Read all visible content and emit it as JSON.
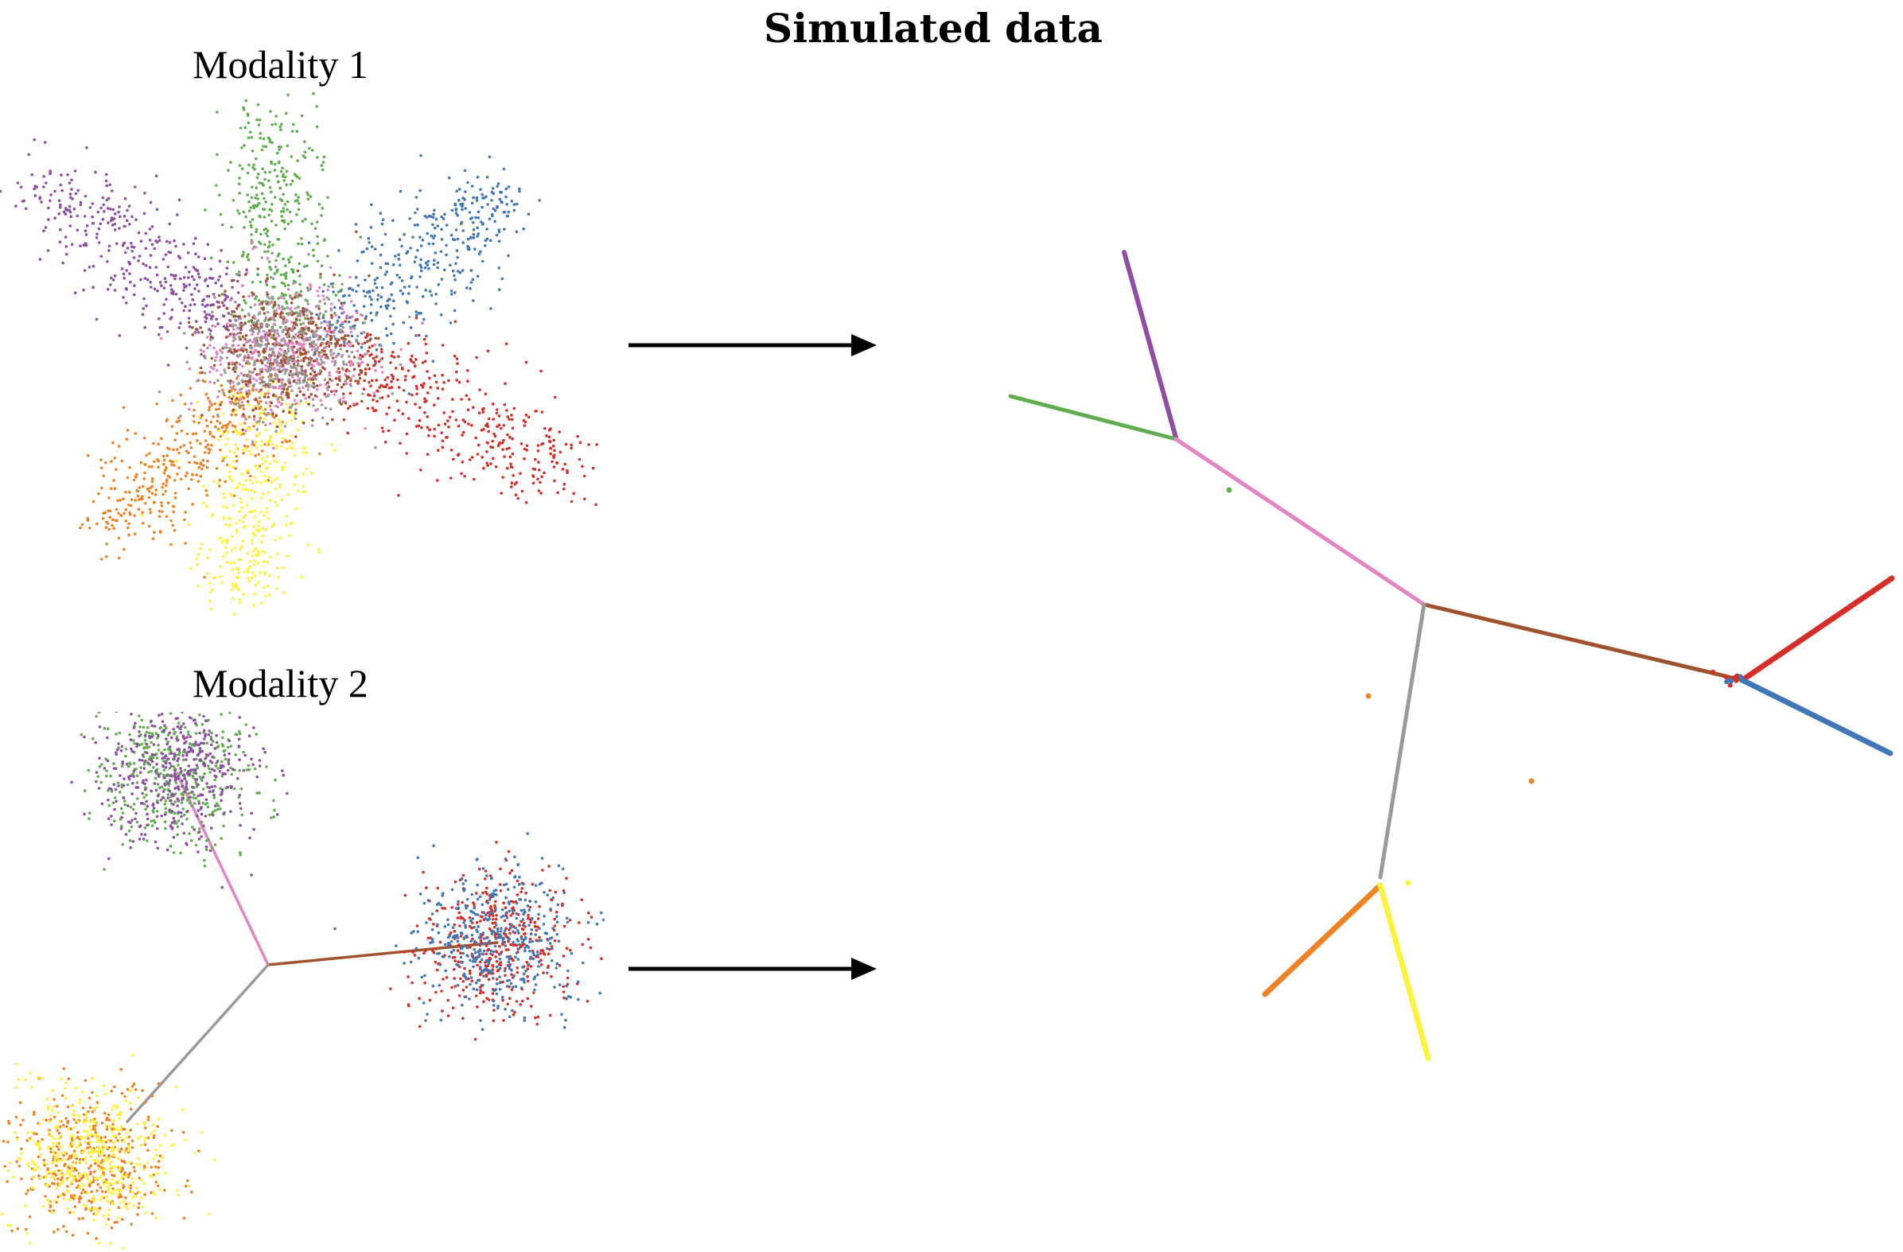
{
  "figure": {
    "title": "Simulated data",
    "modality_1_label": "Modality 1",
    "modality_2_label": "Modality 2"
  },
  "colors": {
    "purple": "#8e4ea3",
    "green": "#5fae4e",
    "blue": "#3f78b5",
    "red": "#d62d27",
    "orange": "#f08226",
    "yellow": "#fff23d",
    "pink": "#e582c6",
    "brown": "#a0522d",
    "gray": "#9a9a9a"
  },
  "modality_1": {
    "arms": [
      "purple",
      "green",
      "blue",
      "red",
      "orange",
      "yellow"
    ],
    "center_mix": [
      "pink",
      "brown",
      "gray"
    ]
  },
  "modality_2": {
    "clusters": [
      {
        "name": "top-left",
        "mix": [
          "green",
          "purple"
        ]
      },
      {
        "name": "right",
        "mix": [
          "red",
          "blue"
        ]
      },
      {
        "name": "bottom-left",
        "mix": [
          "orange",
          "yellow"
        ]
      }
    ],
    "branches": [
      "pink",
      "brown",
      "gray"
    ]
  },
  "embedding": {
    "branches": [
      "purple",
      "green",
      "pink",
      "brown",
      "gray",
      "red",
      "blue",
      "orange",
      "yellow"
    ]
  }
}
